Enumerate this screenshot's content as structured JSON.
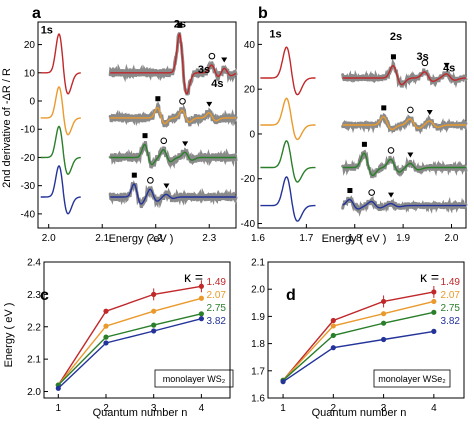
{
  "figure": {
    "panel_a": {
      "letter": "a",
      "ylabel": "2nd derivative of -ΔR / R",
      "xlabel": "Energy  ( eV )",
      "xticks": [
        "2.0",
        "2.1",
        "2.2",
        "2.3"
      ],
      "yticks": [
        "20",
        "10",
        "0",
        "-10",
        "-20",
        "-30",
        "-40"
      ],
      "peak_labels": [
        "1s",
        "2s",
        "3s",
        "4s"
      ]
    },
    "panel_b": {
      "letter": "b",
      "xlabel": "Energy  ( eV )",
      "xticks": [
        "1.6",
        "1.7",
        "1.8",
        "1.9",
        "2.0"
      ],
      "yticks": [
        "40",
        "20",
        "0",
        "-20",
        "-40"
      ],
      "peak_labels": [
        "1s",
        "2s",
        "3s",
        "4s"
      ]
    },
    "panel_c": {
      "letter": "c",
      "ylabel": "Energy  ( eV )",
      "xlabel": "Quantum  number  n",
      "kappa_label": "κ =",
      "inset_label": "monolayer WS₂"
    },
    "panel_d": {
      "letter": "d",
      "xlabel": "Quantum  number  n",
      "kappa_label": "κ =",
      "inset_label": "monolayer WSe₂"
    }
  },
  "colors": {
    "red": "#c0282a",
    "orange": "#ea9a2c",
    "green": "#2a7f2a",
    "blue": "#23339a",
    "gray": "#8a8a8a"
  },
  "chart_data": [
    {
      "type": "line",
      "panel": "a",
      "title": "",
      "xlabel": "Energy ( eV )",
      "ylabel": "2nd derivative of -ΔR / R",
      "xlim": [
        1.98,
        2.35
      ],
      "ylim": [
        -45,
        28
      ],
      "series": [
        {
          "color": "#c0282a",
          "offset": 10,
          "peaks": [
            {
              "x": 2.02,
              "a": 15
            },
            {
              "x": 2.245,
              "a": 15
            },
            {
              "x": 2.305,
              "a": 3
            },
            {
              "x": 2.328,
              "a": 2
            }
          ]
        },
        {
          "color": "#ea9a2c",
          "offset": -6,
          "peaks": [
            {
              "x": 2.02,
              "a": 12
            },
            {
              "x": 2.204,
              "a": 4
            },
            {
              "x": 2.25,
              "a": 3
            },
            {
              "x": 2.3,
              "a": 2
            }
          ]
        },
        {
          "color": "#2a7f2a",
          "offset": -20,
          "peaks": [
            {
              "x": 2.02,
              "a": 12
            },
            {
              "x": 2.18,
              "a": 5
            },
            {
              "x": 2.215,
              "a": 3
            },
            {
              "x": 2.255,
              "a": 2
            }
          ]
        },
        {
          "color": "#23339a",
          "offset": -34,
          "peaks": [
            {
              "x": 2.02,
              "a": 12
            },
            {
              "x": 2.16,
              "a": 5
            },
            {
              "x": 2.19,
              "a": 3
            },
            {
              "x": 2.22,
              "a": 1
            }
          ]
        }
      ]
    },
    {
      "type": "line",
      "panel": "b",
      "title": "",
      "xlabel": "Energy ( eV )",
      "ylabel": "",
      "xlim": [
        1.6,
        2.03
      ],
      "ylim": [
        -42,
        50
      ],
      "series": [
        {
          "color": "#c0282a",
          "offset": 25,
          "peaks": [
            {
              "x": 1.66,
              "a": 15
            },
            {
              "x": 1.88,
              "a": 6
            },
            {
              "x": 1.945,
              "a": 3
            },
            {
              "x": 1.99,
              "a": 2
            }
          ]
        },
        {
          "color": "#ea9a2c",
          "offset": 4,
          "peaks": [
            {
              "x": 1.66,
              "a": 13
            },
            {
              "x": 1.86,
              "a": 4
            },
            {
              "x": 1.915,
              "a": 3
            },
            {
              "x": 1.955,
              "a": 2
            }
          ]
        },
        {
          "color": "#2a7f2a",
          "offset": -15,
          "peaks": [
            {
              "x": 1.66,
              "a": 13
            },
            {
              "x": 1.82,
              "a": 7
            },
            {
              "x": 1.875,
              "a": 4
            },
            {
              "x": 1.915,
              "a": 2
            }
          ]
        },
        {
          "color": "#23339a",
          "offset": -32,
          "peaks": [
            {
              "x": 1.66,
              "a": 14
            },
            {
              "x": 1.79,
              "a": 3
            },
            {
              "x": 1.835,
              "a": 2
            },
            {
              "x": 1.875,
              "a": 1
            }
          ]
        }
      ]
    },
    {
      "type": "line",
      "panel": "c",
      "title": "",
      "xlabel": "Quantum number n",
      "ylabel": "Energy ( eV )",
      "x": [
        1,
        2,
        3,
        4
      ],
      "xlim": [
        0.7,
        4.6
      ],
      "ylim": [
        1.98,
        2.4
      ],
      "xticks": [
        "1",
        "2",
        "3",
        "4"
      ],
      "yticks": [
        "2.0",
        "2.1",
        "2.2",
        "2.3",
        "2.4"
      ],
      "series": [
        {
          "name": "1.49",
          "color": "#c0282a",
          "values": [
            2.02,
            2.248,
            2.3,
            2.325
          ]
        },
        {
          "name": "2.07",
          "color": "#ea9a2c",
          "values": [
            2.02,
            2.202,
            2.248,
            2.288
          ]
        },
        {
          "name": "2.75",
          "color": "#2a7f2a",
          "values": [
            2.02,
            2.168,
            2.205,
            2.24
          ]
        },
        {
          "name": "3.82",
          "color": "#23339a",
          "values": [
            2.01,
            2.15,
            2.187,
            2.225
          ]
        }
      ]
    },
    {
      "type": "line",
      "panel": "d",
      "title": "",
      "xlabel": "Quantum number n",
      "ylabel": "",
      "x": [
        1,
        2,
        3,
        4
      ],
      "xlim": [
        0.7,
        4.6
      ],
      "ylim": [
        1.6,
        2.1
      ],
      "xticks": [
        "1",
        "2",
        "3",
        "4"
      ],
      "yticks": [
        "1.6",
        "1.7",
        "1.8",
        "1.9",
        "2.0",
        "2.1"
      ],
      "series": [
        {
          "name": "1.49",
          "color": "#c0282a",
          "values": [
            1.665,
            1.885,
            1.955,
            1.99
          ]
        },
        {
          "name": "2.07",
          "color": "#ea9a2c",
          "values": [
            1.665,
            1.865,
            1.91,
            1.955
          ]
        },
        {
          "name": "2.75",
          "color": "#2a7f2a",
          "values": [
            1.665,
            1.83,
            1.875,
            1.915
          ]
        },
        {
          "name": "3.82",
          "color": "#23339a",
          "values": [
            1.66,
            1.785,
            1.815,
            1.845
          ]
        }
      ]
    }
  ]
}
